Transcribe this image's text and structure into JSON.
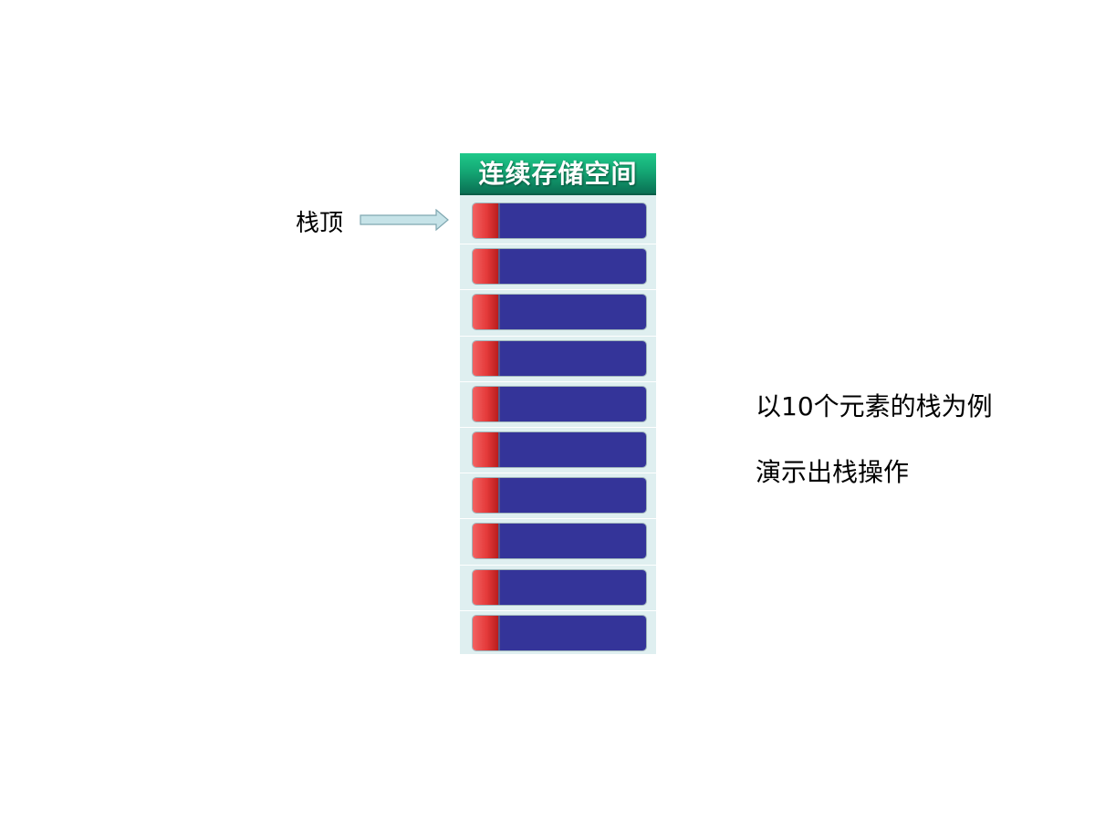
{
  "diagram": {
    "header_title": "连续存储空间",
    "top_pointer_label": "栈顶",
    "slot_count": 10,
    "notes": [
      "以10个元素的栈为例",
      "演示出栈操作"
    ],
    "colors": {
      "header_green": "#14a774",
      "slot_body": "#343499",
      "slot_cap": "#e43a3a",
      "stack_background": "#dfeff0",
      "arrow_fill": "#c6e3e8"
    }
  }
}
